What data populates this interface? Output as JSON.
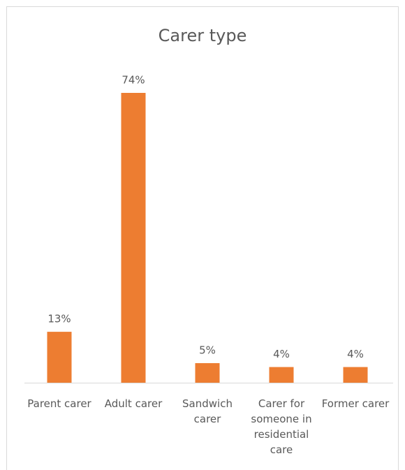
{
  "chart_data": {
    "type": "bar",
    "title": "Carer type",
    "categories": [
      "Parent carer",
      "Adult carer",
      "Sandwich carer",
      "Carer for someone in residential care",
      "Former carer"
    ],
    "values": [
      13,
      74,
      5,
      4,
      4
    ],
    "value_labels": [
      "13%",
      "74%",
      "5%",
      "4%",
      "4%"
    ],
    "color": "#ed7d31"
  }
}
